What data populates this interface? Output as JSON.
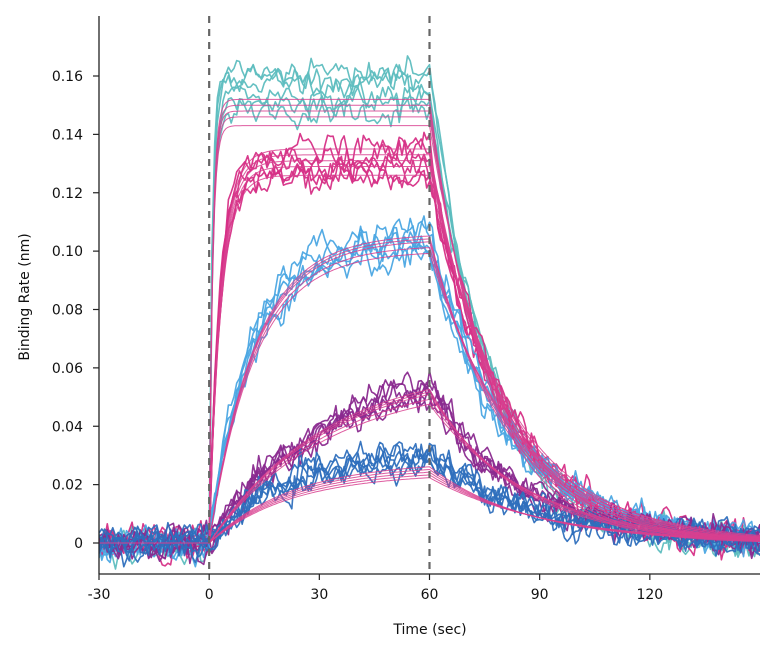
{
  "chart_data": {
    "type": "line",
    "title": "",
    "xlabel": "Time (sec)",
    "ylabel": "Binding Rate (nm)",
    "xlim": [
      -30,
      150
    ],
    "ylim": [
      -0.011,
      0.18
    ],
    "x_ticks": [
      -30,
      0,
      30,
      60,
      90,
      120
    ],
    "x_tick_labels": [
      "-30",
      "0",
      "30",
      "60",
      "90",
      "120"
    ],
    "y_ticks": [
      0,
      0.02,
      0.04,
      0.06,
      0.08,
      0.1,
      0.12,
      0.14,
      0.16
    ],
    "y_tick_labels": [
      "0",
      "0.02",
      "0.04",
      "0.06",
      "0.08",
      "0.10",
      "0.12",
      "0.14",
      "0.16"
    ],
    "reference_lines_x": [
      0,
      60
    ],
    "association_start": 0,
    "dissociation_start": 60,
    "grid": false,
    "legend": "none",
    "colors": {
      "fit": "#d8408f",
      "teal": "#5dbdbf",
      "magenta": "#d62f86",
      "lightblue": "#4ba7e3",
      "purple": "#8a2a8f",
      "blue": "#2e6fbd",
      "reference_line": "#666666"
    },
    "series": [
      {
        "color_key": "teal",
        "plateau": 0.155,
        "kon_rate": 1.2,
        "koff_rate": 0.06,
        "fit_plateaus": [
          0.143,
          0.146,
          0.148,
          0.15,
          0.152
        ]
      },
      {
        "color_key": "magenta",
        "plateau": 0.129,
        "kon_rate": 0.35,
        "koff_rate": 0.05,
        "fit_plateaus": [
          0.126,
          0.129,
          0.131,
          0.133,
          0.135
        ]
      },
      {
        "color_key": "lightblue",
        "plateau": 0.103,
        "kon_rate": 0.09,
        "koff_rate": 0.045,
        "fit_plateaus": [
          0.1,
          0.102,
          0.104,
          0.105,
          0.106
        ]
      },
      {
        "color_key": "purple",
        "plateau": 0.059,
        "kon_rate": 0.035,
        "koff_rate": 0.04,
        "fit_plateaus": [
          0.056,
          0.058,
          0.06,
          0.061,
          0.062
        ]
      },
      {
        "color_key": "blue",
        "plateau": 0.031,
        "kon_rate": 0.05,
        "koff_rate": 0.035,
        "fit_plateaus": [
          0.024,
          0.025,
          0.026,
          0.027,
          0.028
        ]
      }
    ]
  }
}
